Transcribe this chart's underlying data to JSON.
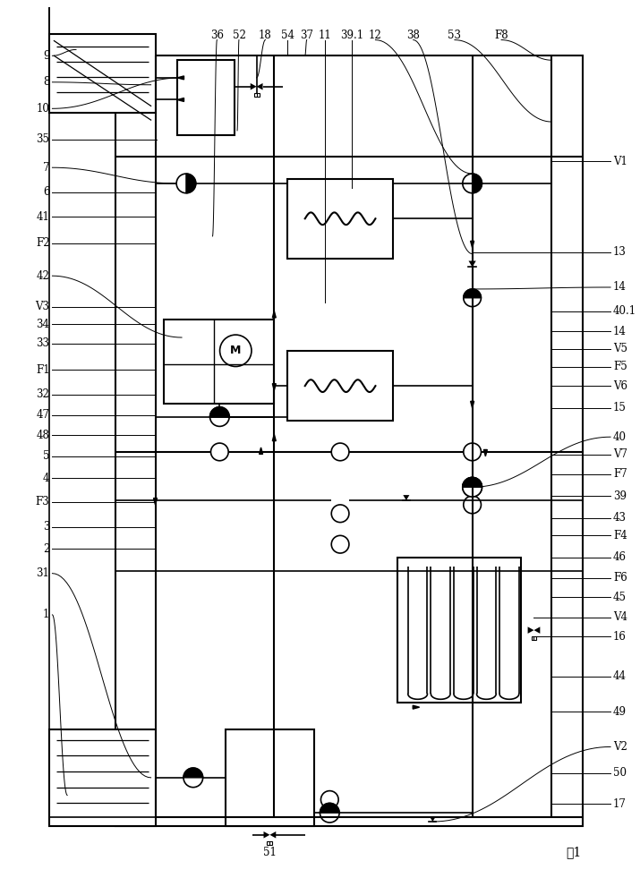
{
  "bg_color": "#ffffff",
  "line_color": "#000000",
  "fig_label": "图1",
  "left_labels": [
    [
      "9",
      55,
      55
    ],
    [
      "8",
      55,
      90
    ],
    [
      "10",
      55,
      115
    ],
    [
      "35",
      55,
      150
    ],
    [
      "7",
      55,
      185
    ],
    [
      "6",
      55,
      215
    ],
    [
      "41",
      55,
      245
    ],
    [
      "F2",
      55,
      275
    ],
    [
      "42",
      55,
      310
    ],
    [
      "V3",
      55,
      345
    ],
    [
      "34",
      55,
      365
    ],
    [
      "33",
      55,
      385
    ],
    [
      "F1",
      55,
      415
    ],
    [
      "32",
      55,
      445
    ],
    [
      "47",
      55,
      470
    ],
    [
      "48",
      55,
      490
    ],
    [
      "5",
      55,
      515
    ],
    [
      "4",
      55,
      540
    ],
    [
      "F3",
      55,
      565
    ],
    [
      "3",
      55,
      595
    ],
    [
      "2",
      55,
      620
    ],
    [
      "31",
      55,
      645
    ],
    [
      "1",
      55,
      690
    ]
  ],
  "top_labels": [
    [
      "36",
      240,
      32
    ],
    [
      "52",
      268,
      32
    ],
    [
      "18",
      298,
      32
    ],
    [
      "54",
      320,
      32
    ],
    [
      "37",
      342,
      32
    ],
    [
      "11",
      365,
      32
    ],
    [
      "39.1",
      393,
      32
    ],
    [
      "12",
      420,
      32
    ],
    [
      "38",
      465,
      32
    ],
    [
      "53",
      510,
      32
    ]
  ],
  "right_labels": [
    [
      "F8",
      685,
      55
    ],
    [
      "V1",
      700,
      175
    ],
    [
      "13",
      700,
      278
    ],
    [
      "14",
      700,
      318
    ],
    [
      "40.1",
      700,
      345
    ],
    [
      "14",
      700,
      368
    ],
    [
      "V5",
      700,
      388
    ],
    [
      "F5",
      700,
      408
    ],
    [
      "V6",
      700,
      430
    ],
    [
      "15",
      700,
      455
    ],
    [
      "40",
      700,
      488
    ],
    [
      "V7",
      700,
      508
    ],
    [
      "F7",
      700,
      530
    ],
    [
      "39",
      700,
      555
    ],
    [
      "43",
      700,
      580
    ],
    [
      "F4",
      700,
      600
    ],
    [
      "46",
      700,
      625
    ],
    [
      "F6",
      700,
      645
    ],
    [
      "45",
      700,
      668
    ],
    [
      "V4",
      700,
      690
    ],
    [
      "16",
      700,
      715
    ],
    [
      "44",
      700,
      760
    ],
    [
      "49",
      700,
      800
    ],
    [
      "V2",
      700,
      840
    ],
    [
      "50",
      700,
      870
    ],
    [
      "17",
      700,
      905
    ]
  ]
}
